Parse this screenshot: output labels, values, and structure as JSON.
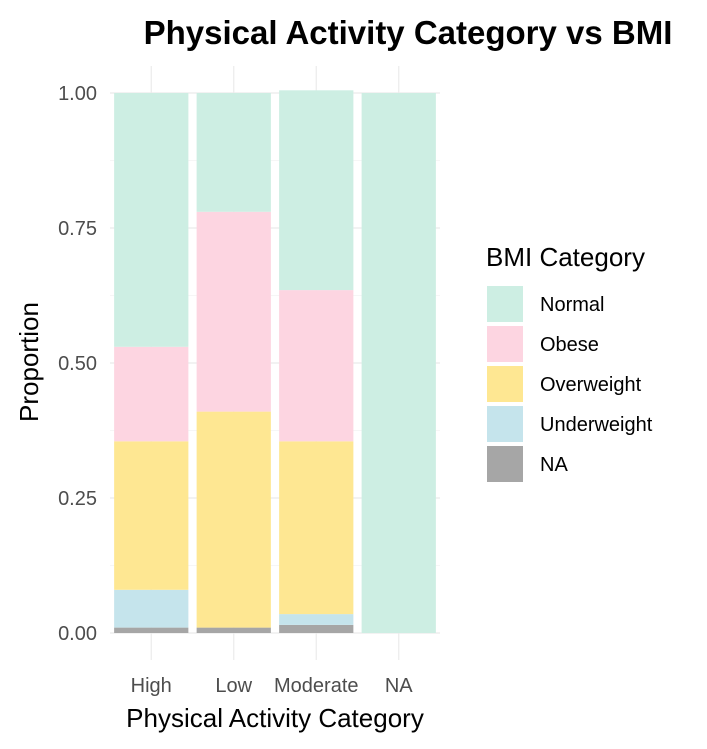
{
  "chart_data": {
    "type": "bar",
    "stacked": true,
    "title": "Physical Activity Category vs BMI",
    "xlabel": "Physical Activity Category",
    "ylabel": "Proportion",
    "ylim": [
      0,
      1
    ],
    "yticks": [
      "0.00",
      "0.25",
      "0.50",
      "0.75",
      "1.00"
    ],
    "categories": [
      "High",
      "Low",
      "Moderate",
      "NA"
    ],
    "legend": {
      "title": "BMI Category",
      "position": "right"
    },
    "grid": true,
    "series": [
      {
        "name": "Normal",
        "color": "#cdeee3",
        "values": [
          0.47,
          0.22,
          0.37,
          1.0
        ]
      },
      {
        "name": "Obese",
        "color": "#fdd5e1",
        "values": [
          0.175,
          0.37,
          0.28,
          0
        ]
      },
      {
        "name": "Overweight",
        "color": "#fee792",
        "values": [
          0.275,
          0.4,
          0.32,
          0
        ]
      },
      {
        "name": "Underweight",
        "color": "#c5e4ec",
        "values": [
          0.07,
          0,
          0.02,
          0
        ]
      },
      {
        "name": "NA",
        "color": "#a6a6a6",
        "values": [
          0.01,
          0.01,
          0.015,
          0
        ]
      }
    ]
  }
}
